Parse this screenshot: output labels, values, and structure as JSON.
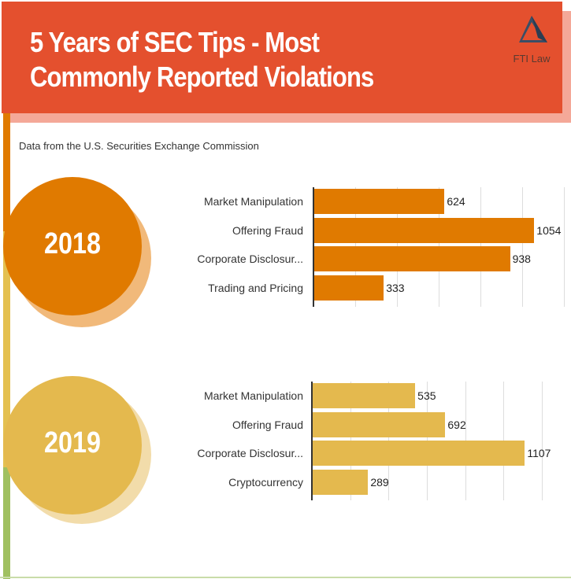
{
  "header": {
    "title": "5 Years of SEC Tips - Most\nCommonly Reported Violations",
    "logo_text": "FTI Law"
  },
  "subtitle": "Data from the U.S. Securities Exchange Commission",
  "colors": {
    "header": "#e4502e",
    "y2018": "#e07a00",
    "y2019": "#e4b94e",
    "green": "#a0c060"
  },
  "chart_data": [
    {
      "type": "bar",
      "title": "2018",
      "categories": [
        "Market Manipulation",
        "Offering Fraud",
        "Corporate Disclosur...",
        "Trading and Pricing"
      ],
      "values": [
        624,
        1054,
        938,
        333
      ],
      "xlim": [
        0,
        1200
      ],
      "grid": true
    },
    {
      "type": "bar",
      "title": "2019",
      "categories": [
        "Market Manipulation",
        "Offering Fraud",
        "Corporate Disclosur...",
        "Cryptocurrency"
      ],
      "values": [
        535,
        692,
        1107,
        289
      ],
      "xlim": [
        0,
        1200
      ],
      "grid": true
    }
  ]
}
